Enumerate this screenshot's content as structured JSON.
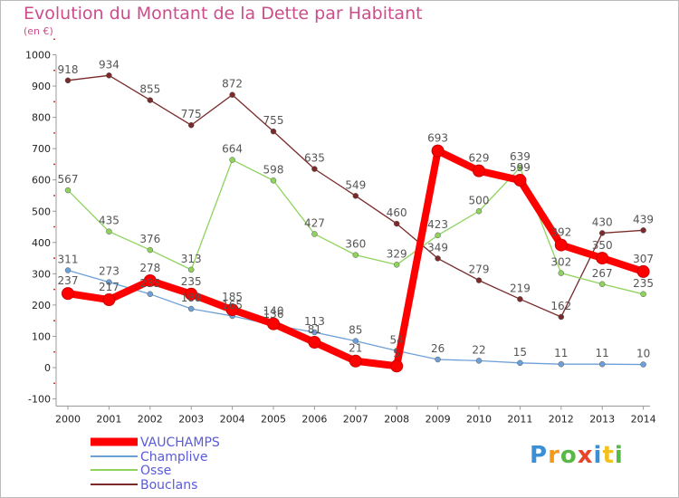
{
  "header": {
    "title": "Evolution du Montant de la Dette par Habitant",
    "unit": "(en €)"
  },
  "brand": {
    "logo_text": "Proxiti"
  },
  "chart_data": {
    "type": "line",
    "title": "Evolution du Montant de la Dette par Habitant",
    "ylabel": "(en €)",
    "ylim": [
      -100,
      1000
    ],
    "yticks": [
      -100,
      0,
      100,
      200,
      300,
      400,
      500,
      600,
      700,
      800,
      900,
      1000
    ],
    "x": [
      "2000",
      "2001",
      "2002",
      "2003",
      "2004",
      "2005",
      "2006",
      "2007",
      "2008",
      "2009",
      "2010",
      "2011",
      "2012",
      "2013",
      "2014"
    ],
    "grid": false,
    "legend": "bottom-left",
    "series": [
      {
        "name": "VAUCHAMPS",
        "color": "#ff0000",
        "values": [
          237,
          217,
          278,
          235,
          185,
          140,
          81,
          21,
          5,
          693,
          629,
          599,
          392,
          350,
          307
        ],
        "labels": [
          "237",
          "217",
          "278",
          "235",
          "185",
          "140",
          "81",
          "21",
          "5",
          "693",
          "629",
          "599",
          "392",
          "350",
          "307"
        ]
      },
      {
        "name": "Champlive",
        "color": "#6ea0d8",
        "values": [
          311,
          273,
          235,
          188,
          165,
          136,
          113,
          85,
          54,
          26,
          22,
          15,
          11,
          11,
          10
        ],
        "labels": [
          "311",
          "273",
          "235",
          "188",
          "165",
          "136",
          "113",
          "85",
          "54",
          "26",
          "22",
          "15",
          "11",
          "11",
          "10"
        ]
      },
      {
        "name": "Osse",
        "color": "#8fd35c",
        "values": [
          567,
          435,
          376,
          313,
          664,
          598,
          427,
          360,
          329,
          423,
          500,
          639,
          302,
          267,
          235
        ],
        "labels": [
          "567",
          "435",
          "376",
          "313",
          "664",
          "598",
          "427",
          "360",
          "329",
          "423",
          "500",
          "639",
          "302",
          "267",
          "235"
        ]
      },
      {
        "name": "Bouclans",
        "color": "#7a2a2a",
        "values": [
          918,
          934,
          855,
          775,
          872,
          755,
          635,
          549,
          460,
          349,
          279,
          219,
          162,
          430,
          439
        ],
        "labels": [
          "918",
          "934",
          "855",
          "775",
          "872",
          "755",
          "635",
          "549",
          "460",
          "349",
          "279",
          "219",
          "162",
          "430",
          "439"
        ]
      }
    ]
  }
}
